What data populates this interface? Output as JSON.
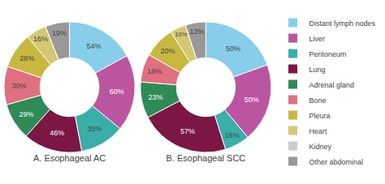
{
  "chart_data": [
    {
      "type": "donut",
      "title": "A. Esophageal AC",
      "categories": [
        "Distant lymph nodes",
        "Liver",
        "Peritoneum",
        "Lung",
        "Adrenal gland",
        "Bone",
        "Pleura",
        "Heart",
        "Kidney",
        "Other abdominal"
      ],
      "values": [
        54,
        60,
        35,
        46,
        29,
        30,
        28,
        16,
        0,
        19
      ],
      "value_labels": [
        "54%",
        "60%",
        "35%",
        "46%",
        "29%",
        "30%",
        "28%",
        "16%",
        null,
        "19%"
      ],
      "colors": [
        "#87CEEB",
        "#BB55A0",
        "#3AAFA9",
        "#7B1645",
        "#2E8B57",
        "#E07080",
        "#C8B840",
        "#D4C870",
        "#CCCCCC",
        "#999999"
      ],
      "legend": "right"
    },
    {
      "type": "donut",
      "title": "B. Esophageal SCC",
      "categories": [
        "Distant lymph nodes",
        "Liver",
        "Peritoneum",
        "Lung",
        "Adrenal gland",
        "Bone",
        "Pleura",
        "Heart",
        "Kidney",
        "Other abdominal"
      ],
      "values": [
        50,
        50,
        16,
        57,
        23,
        18,
        20,
        10,
        0,
        13
      ],
      "value_labels": [
        "50%",
        "50%",
        "16%",
        "57%",
        "23%",
        "18%",
        "20%",
        "10%",
        null,
        "13%"
      ],
      "colors": [
        "#87CEEB",
        "#BB55A0",
        "#3AAFA9",
        "#7B1645",
        "#2E8B57",
        "#E07080",
        "#C8B840",
        "#D4C870",
        "#CCCCCC",
        "#999999"
      ],
      "legend": "right"
    }
  ]
}
